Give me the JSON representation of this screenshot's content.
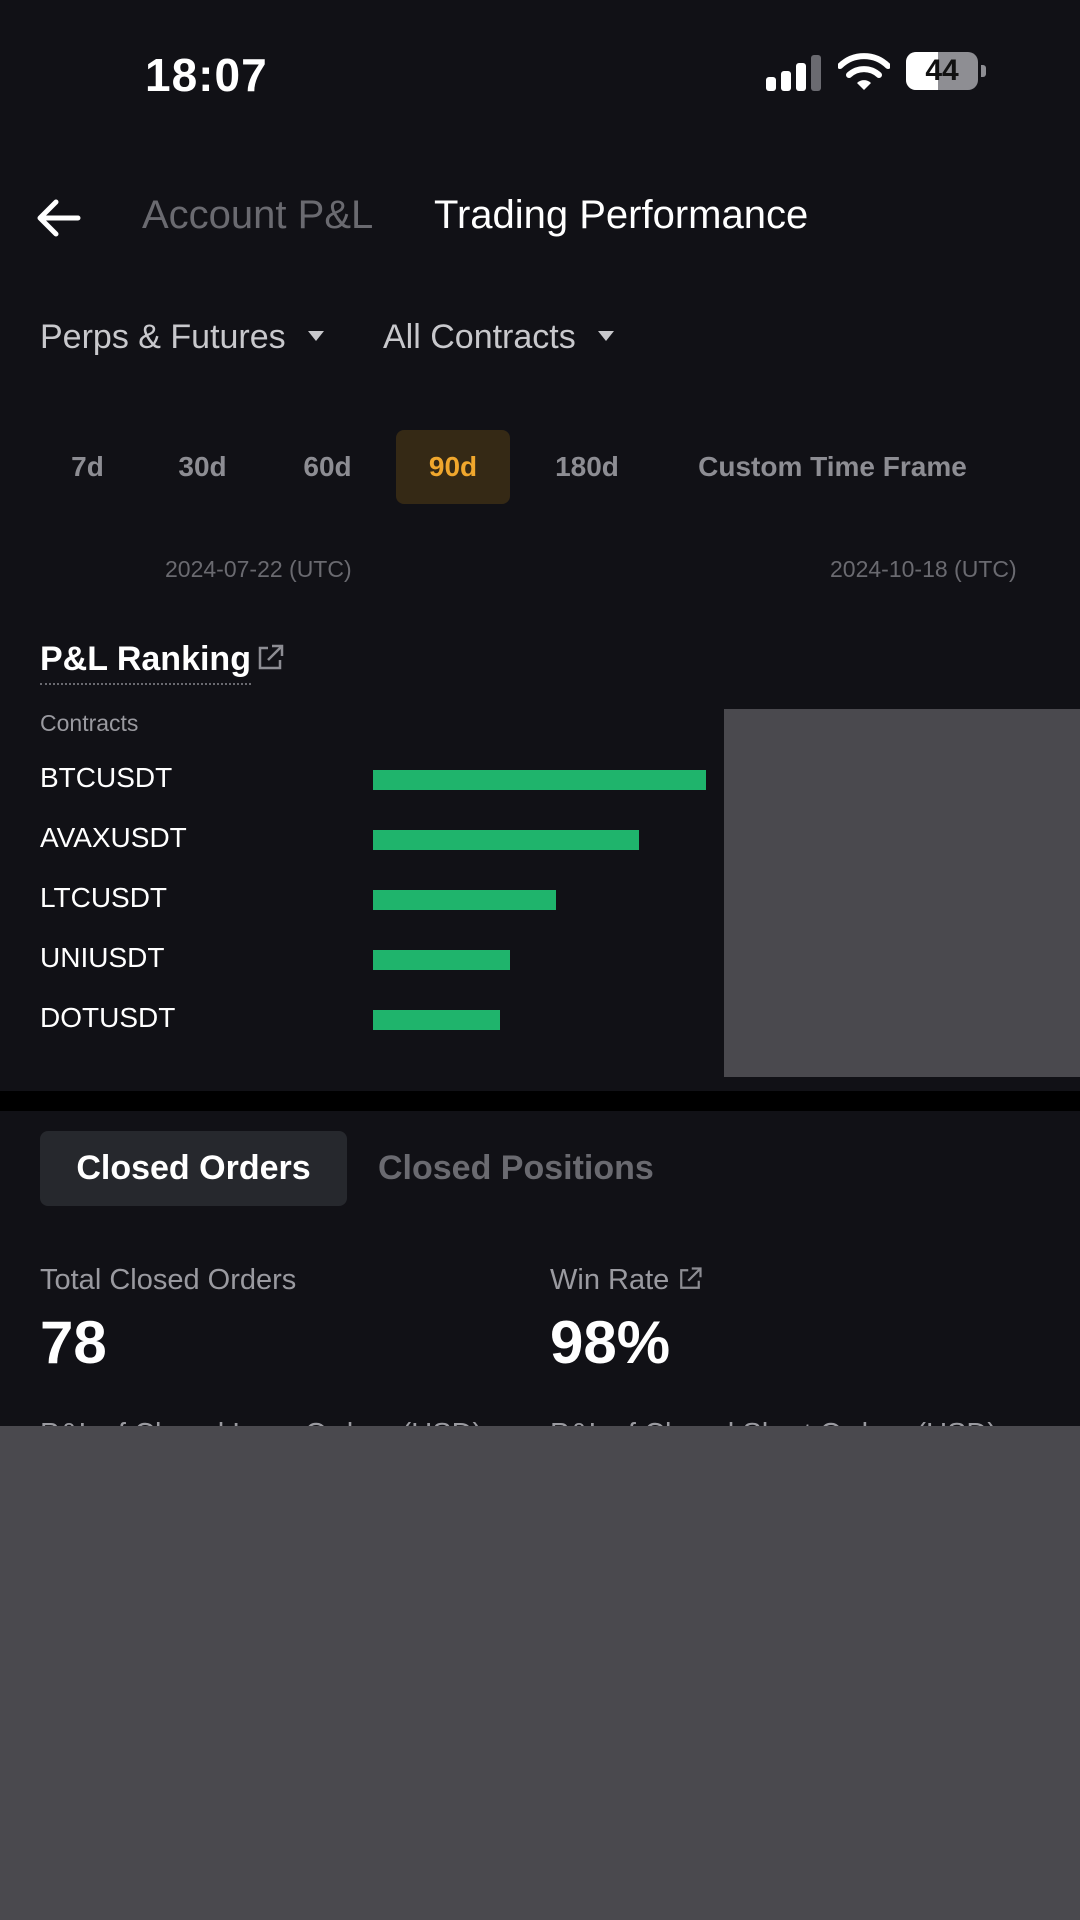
{
  "status_bar": {
    "time": "18:07",
    "battery": "44",
    "battery_level": 0.44
  },
  "header": {
    "back_icon": "arrow-left-icon",
    "tabs": [
      {
        "label": "Account P&L",
        "active": false
      },
      {
        "label": "Trading Performance",
        "active": true
      }
    ]
  },
  "filters": {
    "market": "Perps & Futures",
    "contracts": "All Contracts"
  },
  "ranges": [
    "7d",
    "30d",
    "60d",
    "90d",
    "180d",
    "Custom Time Frame"
  ],
  "selected_range": "90d",
  "date_range": {
    "start": "2024-07-22 (UTC)",
    "end": "2024-10-18 (UTC)"
  },
  "pnl_ranking": {
    "title": "P&L Ranking",
    "column_label": "Contracts",
    "rows": [
      {
        "contract": "BTCUSDT",
        "relative_pnl": 1.0
      },
      {
        "contract": "AVAXUSDT",
        "relative_pnl": 0.8
      },
      {
        "contract": "LTCUSDT",
        "relative_pnl": 0.55
      },
      {
        "contract": "UNIUSDT",
        "relative_pnl": 0.41
      },
      {
        "contract": "DOTUSDT",
        "relative_pnl": 0.38
      }
    ],
    "bar_color": "#1fb46c"
  },
  "closed_tabs": {
    "active": "Closed Orders",
    "inactive": "Closed Positions"
  },
  "stats": {
    "total_label": "Total Closed Orders",
    "total_value": "78",
    "win_label": "Win Rate",
    "win_value": "98%"
  },
  "partial_labels": {
    "left": "P&L of Closed Long Orders (USD)",
    "right": "P&L of Closed Short Orders (USD)"
  },
  "colors": {
    "accent": "#f0a72d",
    "background": "#111116",
    "positive": "#1fb46c"
  }
}
